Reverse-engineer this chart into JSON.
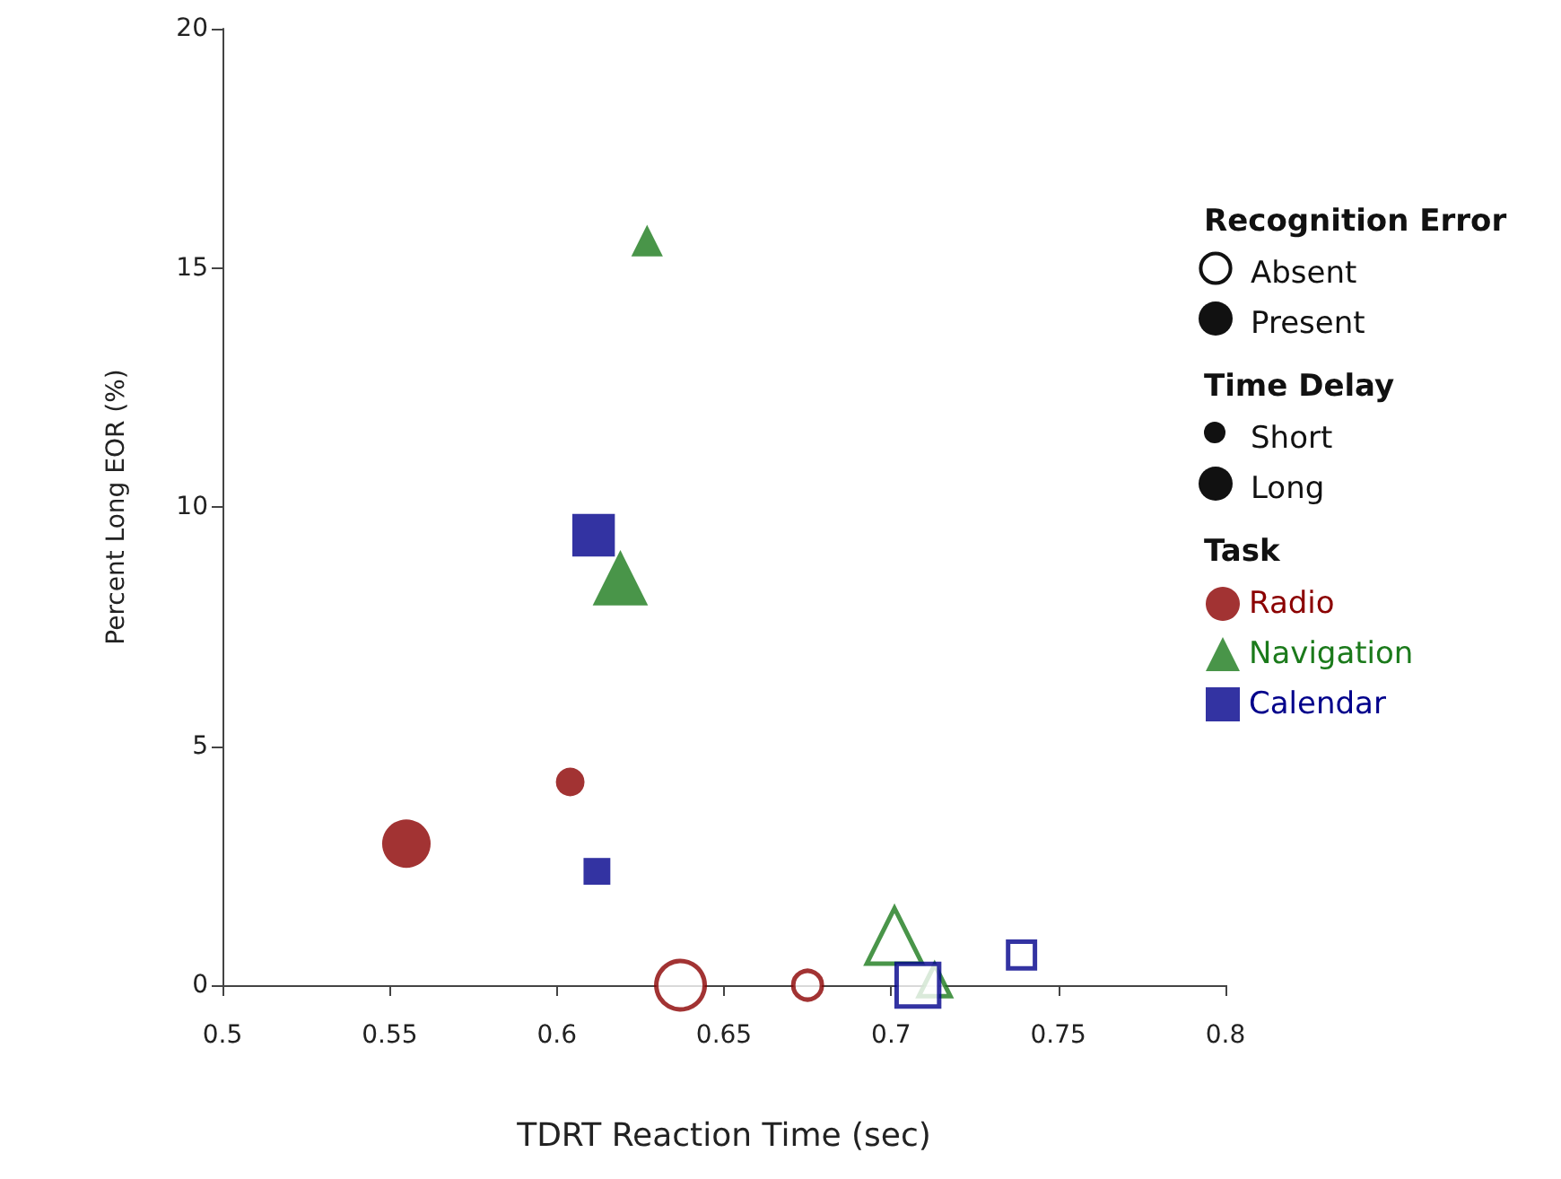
{
  "chart_data": {
    "type": "bubble",
    "xlabel": "TDRT Reaction Time (sec)",
    "ylabel": "Percent Long EOR (%)",
    "xlim": [
      0.5,
      0.8
    ],
    "xticks": [
      0.5,
      0.55,
      0.6,
      0.65,
      0.7,
      0.75,
      0.8
    ],
    "ylim": [
      0,
      20
    ],
    "yticks": [
      0,
      5,
      10,
      15,
      20
    ],
    "grid": false,
    "legend": "right",
    "annotations": [
      "Recognition Error",
      "Absent",
      "Present",
      "Time Delay",
      "Short",
      "Long"
    ],
    "legend_title": "Task",
    "series": [
      {
        "name": "Radio",
        "marker": "circle",
        "color": "#8b0000",
        "x": [
          0.604,
          0.555
        ],
        "values": [
          4.25,
          2.96
        ],
        "sizes": [
          0.35,
          1
        ]
      },
      {
        "marker": "circle",
        "color": "#8b0000",
        "x": [
          0.675,
          0.637
        ],
        "values": [
          0,
          0
        ],
        "sizes": [
          0.35,
          1
        ]
      },
      {
        "name": "Navigation",
        "marker": "triangle",
        "color": "#1b7a1b",
        "x": [
          0.627,
          0.619
        ],
        "values": [
          15.57,
          8.52
        ],
        "sizes": [
          0.27,
          0.83
        ]
      },
      {
        "marker": "triangle",
        "color": "#1b7a1b",
        "x": [
          0.713,
          0.701
        ],
        "values": [
          0.1,
          1.03
        ],
        "sizes": [
          0.27,
          0.83
        ]
      },
      {
        "name": "Calendar",
        "marker": "square",
        "color": "#00008b",
        "x": [
          0.612,
          0.611
        ],
        "values": [
          2.38,
          9.41
        ],
        "sizes": [
          0.39,
          0.98
        ]
      },
      {
        "marker": "square",
        "color": "#00008b",
        "x": [
          0.739,
          0.708
        ],
        "values": [
          0.63,
          0
        ],
        "sizes": [
          0.39,
          0.98
        ]
      }
    ]
  }
}
